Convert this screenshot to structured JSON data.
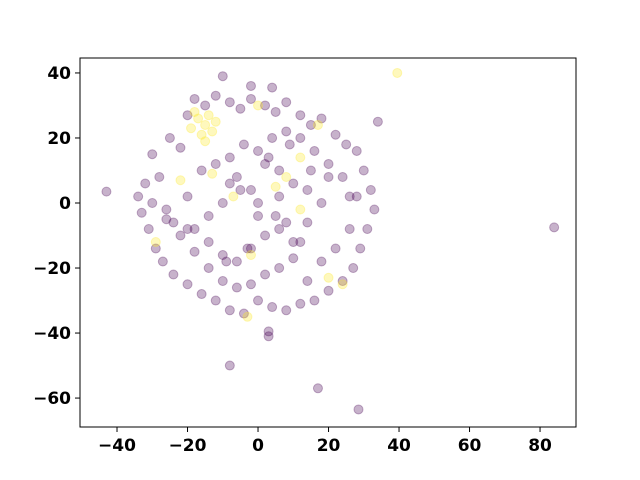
{
  "chart_data": {
    "type": "scatter",
    "xlim": [
      -50.5,
      90.2
    ],
    "ylim": [
      -68.9,
      44.6
    ],
    "xticks": [
      {
        "value": -40,
        "label": "−40"
      },
      {
        "value": -20,
        "label": "−20"
      },
      0,
      20,
      40,
      60,
      80
    ],
    "yticks": [
      {
        "value": -60,
        "label": "−60"
      },
      {
        "value": -40,
        "label": "−40"
      },
      {
        "value": -20,
        "label": "−20"
      },
      0,
      20,
      40
    ],
    "grid": false,
    "series": [
      {
        "color": "#440154",
        "x": [
          84,
          -43,
          28.5,
          17,
          -8,
          3,
          3,
          -10,
          34,
          -2,
          4,
          -30,
          -28,
          -25,
          -22,
          -20,
          -18,
          -15,
          -12,
          -8,
          -5,
          -2,
          2,
          5,
          8,
          12,
          15,
          18,
          22,
          25,
          28,
          30,
          32,
          33,
          31,
          29,
          27,
          24,
          20,
          16,
          12,
          8,
          4,
          0,
          -4,
          -8,
          -12,
          -16,
          -20,
          -24,
          -27,
          -29,
          -31,
          -33,
          -34,
          -32,
          -30,
          -26,
          -22,
          -18,
          -14,
          -10,
          -6,
          -2,
          2,
          6,
          10,
          14,
          18,
          22,
          26,
          28,
          24,
          20,
          16,
          12,
          8,
          4,
          0,
          -4,
          -8,
          -12,
          -16,
          -20,
          -24,
          -18,
          -14,
          -10,
          -6,
          -2,
          2,
          6,
          10,
          14,
          18,
          10,
          6,
          2,
          -2,
          -6,
          -10,
          0,
          5,
          -5,
          8,
          -8,
          14,
          -14,
          20,
          -20,
          26,
          -26,
          3,
          -3,
          9,
          -9,
          15,
          12,
          0,
          6
        ],
        "y": [
          -7.5,
          3.5,
          -63.5,
          -57,
          -50,
          -41,
          -39.5,
          39,
          25,
          36,
          35.5,
          15,
          8,
          20,
          17,
          27,
          32,
          30,
          33,
          31,
          29,
          32,
          30,
          28,
          31,
          27,
          24,
          26,
          21,
          18,
          16,
          10,
          4,
          -2,
          -8,
          -14,
          -20,
          -24,
          -27,
          -30,
          -31,
          -33,
          -32,
          -30,
          -34,
          -33,
          -30,
          -28,
          -25,
          -22,
          -18,
          -14,
          -8,
          -3,
          2,
          6,
          0,
          -5,
          -10,
          -15,
          -20,
          -24,
          -26,
          -25,
          -22,
          -20,
          -17,
          -24,
          -18,
          -14,
          -8,
          2,
          8,
          12,
          16,
          20,
          22,
          20,
          16,
          18,
          14,
          12,
          10,
          2,
          -6,
          -8,
          -12,
          -16,
          -18,
          -14,
          -10,
          -8,
          -12,
          -6,
          0,
          6,
          10,
          12,
          4,
          8,
          0,
          0,
          -4,
          4,
          -6,
          6,
          4,
          -4,
          8,
          -8,
          2,
          -2,
          14,
          -14,
          18,
          -18,
          10,
          -12,
          -4,
          2
        ]
      },
      {
        "color": "#fde725",
        "x": [
          39.5,
          -15,
          -17,
          -13,
          -19,
          -14,
          -16,
          -12,
          -18,
          -15,
          12,
          12,
          -13,
          -7,
          -22,
          -2,
          5,
          -3,
          0,
          24,
          17,
          -29,
          20,
          8
        ],
        "y": [
          40,
          24,
          26,
          22,
          23,
          27,
          21,
          25,
          28,
          19,
          14,
          -2,
          9,
          2,
          7,
          -16,
          5,
          -35,
          30,
          -25,
          24,
          -12,
          -23,
          8
        ]
      }
    ]
  }
}
